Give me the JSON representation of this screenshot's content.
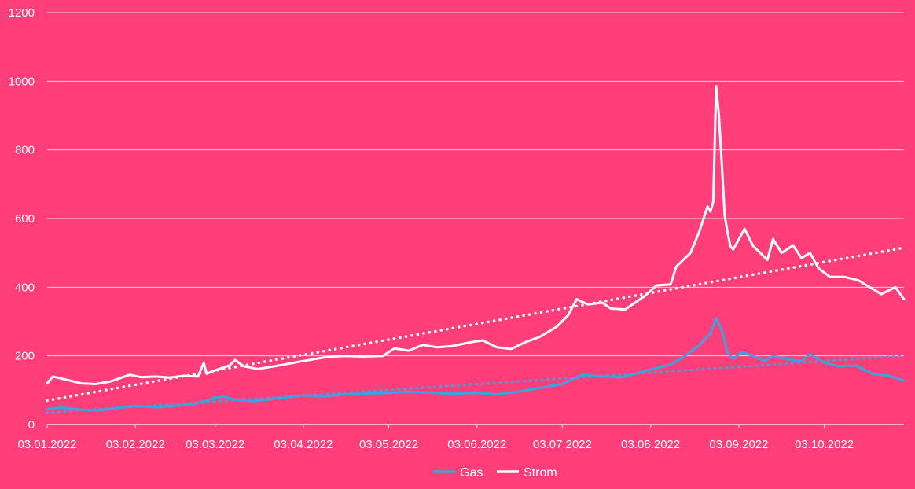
{
  "chart_data": {
    "type": "line",
    "title": "",
    "xlabel": "",
    "ylabel": "",
    "ylim": [
      0,
      1200
    ],
    "xlim": [
      "2022-01-03",
      "2022-10-31"
    ],
    "yticks": [
      0,
      200,
      400,
      600,
      800,
      1000,
      1200
    ],
    "xticks": [
      {
        "date": "2022-01-03",
        "label": "03.01.2022"
      },
      {
        "date": "2022-02-03",
        "label": "03.02.2022"
      },
      {
        "date": "2022-03-03",
        "label": "03.03.2022"
      },
      {
        "date": "2022-04-03",
        "label": "03.04.2022"
      },
      {
        "date": "2022-05-03",
        "label": "03.05.2022"
      },
      {
        "date": "2022-06-03",
        "label": "03.06.2022"
      },
      {
        "date": "2022-07-03",
        "label": "03.07.2022"
      },
      {
        "date": "2022-08-03",
        "label": "03.08.2022"
      },
      {
        "date": "2022-09-03",
        "label": "03.09.2022"
      },
      {
        "date": "2022-10-03",
        "label": "03.10.2022"
      }
    ],
    "grid": true,
    "legend_position": "bottom",
    "background_color": "#FF3E7A",
    "series": [
      {
        "name": "Gas",
        "color": "#3BA3E0",
        "trendline": {
          "type": "linear",
          "style": "dotted",
          "start": 35,
          "end": 200
        },
        "points": [
          [
            "2022-01-03",
            45
          ],
          [
            "2022-01-08",
            50
          ],
          [
            "2022-01-14",
            44
          ],
          [
            "2022-01-20",
            40
          ],
          [
            "2022-01-28",
            48
          ],
          [
            "2022-02-03",
            55
          ],
          [
            "2022-02-10",
            50
          ],
          [
            "2022-02-17",
            54
          ],
          [
            "2022-02-24",
            60
          ],
          [
            "2022-02-28",
            70
          ],
          [
            "2022-03-03",
            78
          ],
          [
            "2022-03-06",
            82
          ],
          [
            "2022-03-10",
            72
          ],
          [
            "2022-03-17",
            68
          ],
          [
            "2022-03-24",
            75
          ],
          [
            "2022-04-03",
            85
          ],
          [
            "2022-04-10",
            82
          ],
          [
            "2022-04-17",
            88
          ],
          [
            "2022-04-24",
            90
          ],
          [
            "2022-05-03",
            92
          ],
          [
            "2022-05-10",
            96
          ],
          [
            "2022-05-17",
            93
          ],
          [
            "2022-05-24",
            90
          ],
          [
            "2022-06-03",
            92
          ],
          [
            "2022-06-10",
            88
          ],
          [
            "2022-06-17",
            95
          ],
          [
            "2022-06-24",
            105
          ],
          [
            "2022-07-03",
            118
          ],
          [
            "2022-07-10",
            145
          ],
          [
            "2022-07-17",
            140
          ],
          [
            "2022-07-24",
            138
          ],
          [
            "2022-08-03",
            160
          ],
          [
            "2022-08-10",
            175
          ],
          [
            "2022-08-15",
            200
          ],
          [
            "2022-08-20",
            230
          ],
          [
            "2022-08-24",
            265
          ],
          [
            "2022-08-26",
            310
          ],
          [
            "2022-08-28",
            275
          ],
          [
            "2022-08-30",
            210
          ],
          [
            "2022-09-01",
            192
          ],
          [
            "2022-09-04",
            210
          ],
          [
            "2022-09-08",
            200
          ],
          [
            "2022-09-12",
            185
          ],
          [
            "2022-09-15",
            200
          ],
          [
            "2022-09-20",
            190
          ],
          [
            "2022-09-25",
            185
          ],
          [
            "2022-09-28",
            205
          ],
          [
            "2022-10-03",
            180
          ],
          [
            "2022-10-08",
            170
          ],
          [
            "2022-10-14",
            172
          ],
          [
            "2022-10-20",
            148
          ],
          [
            "2022-10-26",
            142
          ],
          [
            "2022-10-31",
            128
          ]
        ]
      },
      {
        "name": "Strom",
        "color": "#FFFFFF",
        "trendline": {
          "type": "linear",
          "style": "dotted",
          "start": 70,
          "end": 515
        },
        "points": [
          [
            "2022-01-03",
            120
          ],
          [
            "2022-01-05",
            140
          ],
          [
            "2022-01-10",
            130
          ],
          [
            "2022-01-15",
            120
          ],
          [
            "2022-01-20",
            118
          ],
          [
            "2022-01-25",
            125
          ],
          [
            "2022-02-01",
            145
          ],
          [
            "2022-02-05",
            138
          ],
          [
            "2022-02-10",
            140
          ],
          [
            "2022-02-15",
            137
          ],
          [
            "2022-02-20",
            142
          ],
          [
            "2022-02-25",
            140
          ],
          [
            "2022-02-27",
            180
          ],
          [
            "2022-02-28",
            148
          ],
          [
            "2022-03-03",
            158
          ],
          [
            "2022-03-08",
            172
          ],
          [
            "2022-03-10",
            188
          ],
          [
            "2022-03-13",
            170
          ],
          [
            "2022-03-18",
            162
          ],
          [
            "2022-03-24",
            170
          ],
          [
            "2022-04-03",
            185
          ],
          [
            "2022-04-10",
            195
          ],
          [
            "2022-04-17",
            200
          ],
          [
            "2022-04-24",
            198
          ],
          [
            "2022-05-01",
            200
          ],
          [
            "2022-05-05",
            222
          ],
          [
            "2022-05-10",
            215
          ],
          [
            "2022-05-15",
            232
          ],
          [
            "2022-05-20",
            225
          ],
          [
            "2022-05-25",
            228
          ],
          [
            "2022-06-01",
            240
          ],
          [
            "2022-06-05",
            245
          ],
          [
            "2022-06-10",
            225
          ],
          [
            "2022-06-15",
            220
          ],
          [
            "2022-06-20",
            240
          ],
          [
            "2022-06-25",
            255
          ],
          [
            "2022-07-01",
            285
          ],
          [
            "2022-07-05",
            318
          ],
          [
            "2022-07-08",
            365
          ],
          [
            "2022-07-12",
            350
          ],
          [
            "2022-07-17",
            355
          ],
          [
            "2022-07-20",
            338
          ],
          [
            "2022-07-25",
            335
          ],
          [
            "2022-08-01",
            375
          ],
          [
            "2022-08-05",
            405
          ],
          [
            "2022-08-10",
            408
          ],
          [
            "2022-08-12",
            460
          ],
          [
            "2022-08-17",
            500
          ],
          [
            "2022-08-20",
            560
          ],
          [
            "2022-08-23",
            635
          ],
          [
            "2022-08-24",
            620
          ],
          [
            "2022-08-25",
            650
          ],
          [
            "2022-08-26",
            985
          ],
          [
            "2022-08-27",
            900
          ],
          [
            "2022-08-28",
            760
          ],
          [
            "2022-08-29",
            610
          ],
          [
            "2022-08-30",
            560
          ],
          [
            "2022-08-31",
            520
          ],
          [
            "2022-09-01",
            510
          ],
          [
            "2022-09-03",
            540
          ],
          [
            "2022-09-05",
            570
          ],
          [
            "2022-09-08",
            520
          ],
          [
            "2022-09-13",
            480
          ],
          [
            "2022-09-15",
            540
          ],
          [
            "2022-09-18",
            500
          ],
          [
            "2022-09-22",
            522
          ],
          [
            "2022-09-25",
            485
          ],
          [
            "2022-09-28",
            500
          ],
          [
            "2022-10-01",
            455
          ],
          [
            "2022-10-05",
            430
          ],
          [
            "2022-10-10",
            430
          ],
          [
            "2022-10-15",
            420
          ],
          [
            "2022-10-20",
            395
          ],
          [
            "2022-10-23",
            380
          ],
          [
            "2022-10-28",
            400
          ],
          [
            "2022-10-31",
            365
          ]
        ]
      }
    ]
  }
}
